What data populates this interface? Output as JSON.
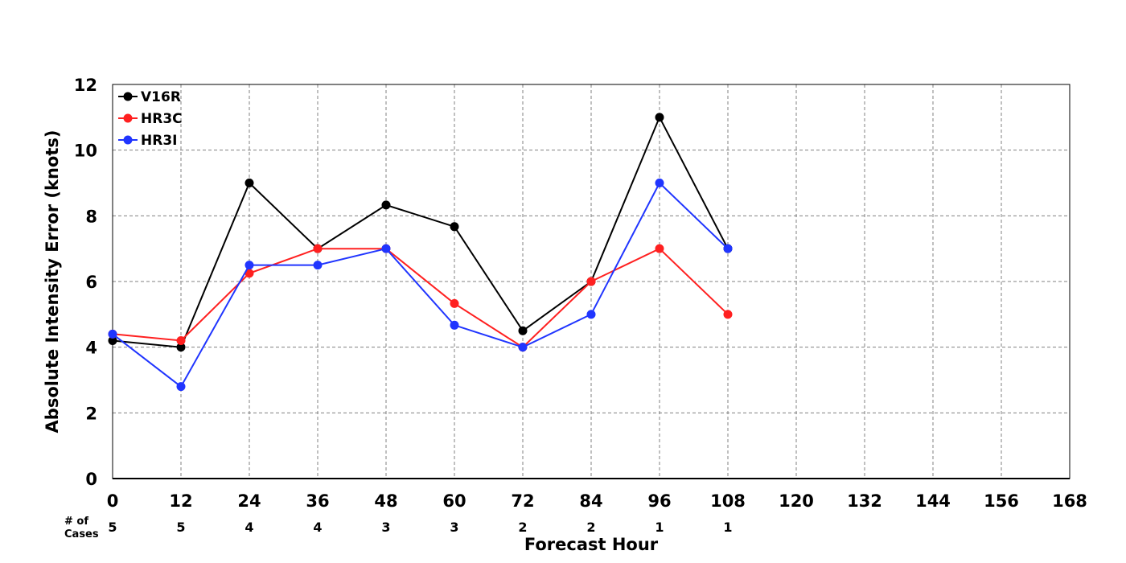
{
  "chart_data": {
    "type": "line",
    "title": "",
    "xlabel": "Forecast Hour",
    "ylabel": "Absolute Intensity Error (knots)",
    "xlim": [
      0,
      168
    ],
    "ylim": [
      0,
      12
    ],
    "xticks": [
      0,
      12,
      24,
      36,
      48,
      60,
      72,
      84,
      96,
      108,
      120,
      132,
      144,
      156,
      168
    ],
    "yticks": [
      0,
      2,
      4,
      6,
      8,
      10,
      12
    ],
    "grid": true,
    "legend_position": "top-left",
    "cases_label_line1": "# of",
    "cases_label_line2": "Cases",
    "cases": [
      {
        "x": 0,
        "n": "5"
      },
      {
        "x": 12,
        "n": "5"
      },
      {
        "x": 24,
        "n": "4"
      },
      {
        "x": 36,
        "n": "4"
      },
      {
        "x": 48,
        "n": "3"
      },
      {
        "x": 60,
        "n": "3"
      },
      {
        "x": 72,
        "n": "2"
      },
      {
        "x": 84,
        "n": "2"
      },
      {
        "x": 96,
        "n": "1"
      },
      {
        "x": 108,
        "n": "1"
      }
    ],
    "series": [
      {
        "name": "V16R",
        "color": "#000000",
        "x": [
          0,
          12,
          24,
          36,
          48,
          60,
          72,
          84,
          96,
          108
        ],
        "y": [
          4.2,
          4.0,
          9.0,
          7.0,
          8.33,
          7.67,
          4.5,
          6.0,
          11.0,
          7.0
        ]
      },
      {
        "name": "HR3C",
        "color": "#ff2020",
        "x": [
          0,
          12,
          24,
          36,
          48,
          60,
          72,
          84,
          96,
          108
        ],
        "y": [
          4.4,
          4.2,
          6.25,
          7.0,
          7.0,
          5.33,
          4.0,
          6.0,
          7.0,
          5.0
        ]
      },
      {
        "name": "HR3I",
        "color": "#2035ff",
        "x": [
          0,
          12,
          24,
          36,
          48,
          60,
          72,
          84,
          96,
          108
        ],
        "y": [
          4.4,
          2.8,
          6.5,
          6.5,
          7.0,
          4.67,
          4.0,
          5.0,
          9.0,
          7.0
        ]
      }
    ]
  }
}
